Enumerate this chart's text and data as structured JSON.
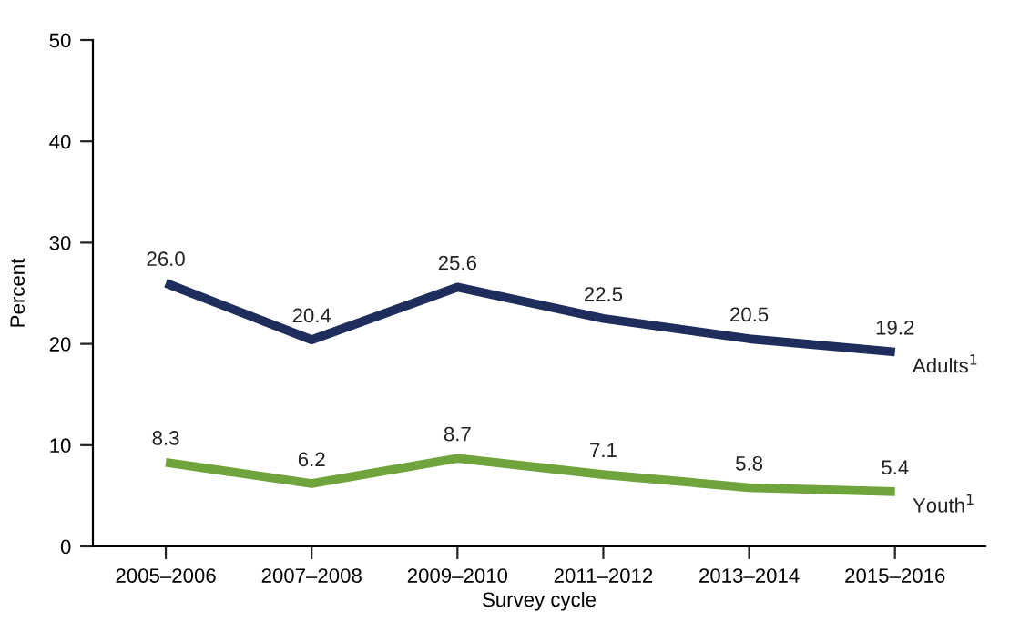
{
  "chart_data": {
    "type": "line",
    "xlabel": "Survey cycle",
    "ylabel": "Percent",
    "categories": [
      "2005–2006",
      "2007–2008",
      "2009–2010",
      "2011–2012",
      "2013–2014",
      "2015–2016"
    ],
    "series": [
      {
        "name": "Adults$^{1}$",
        "color": "#1f2d5c",
        "values": [
          26.0,
          20.4,
          25.6,
          22.5,
          20.5,
          19.2
        ],
        "value_labels": [
          "26.0",
          "20.4",
          "25.6",
          "22.5",
          "20.5",
          "19.2"
        ]
      },
      {
        "name": "Youth$^{1}$",
        "color": "#6fa33c",
        "values": [
          8.3,
          6.2,
          8.7,
          7.1,
          5.8,
          5.4
        ],
        "value_labels": [
          "8.3",
          "6.2",
          "8.7",
          "7.1",
          "5.8",
          "5.4"
        ]
      }
    ],
    "ylim": [
      0,
      50
    ],
    "yticks": [
      0,
      10,
      20,
      30,
      40,
      50
    ],
    "grid": false,
    "legend": false,
    "marker": "none",
    "line_style": "solid"
  }
}
